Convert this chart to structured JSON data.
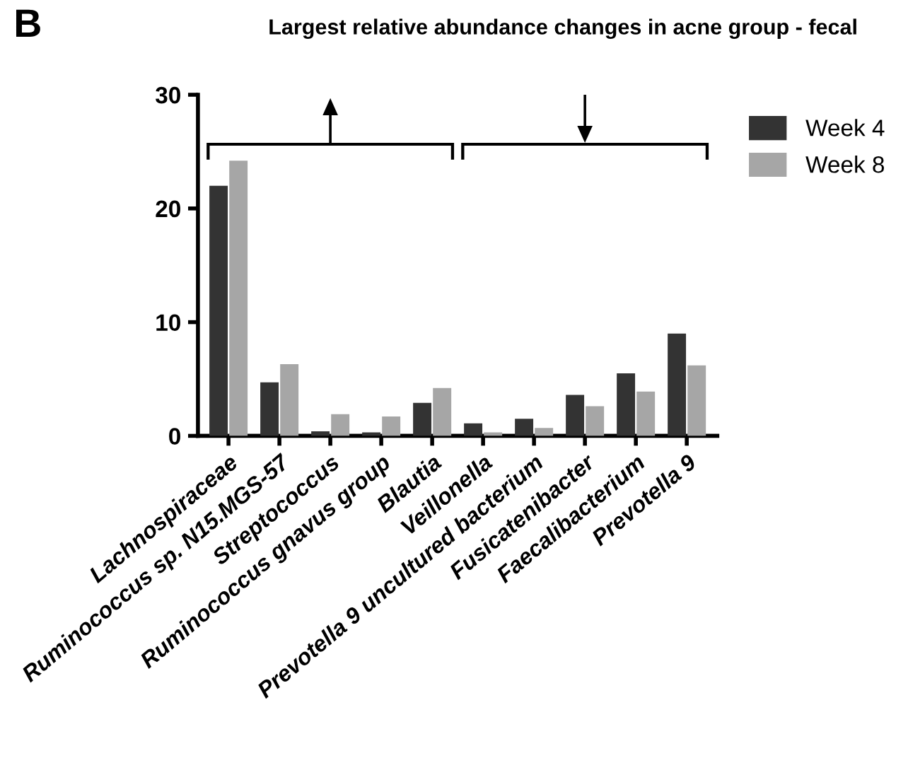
{
  "chart_data": {
    "type": "bar",
    "title": "Largest relative abundance changes in acne group - fecal",
    "categories": [
      "Lachnospiraceae",
      "Ruminococcus sp. N15.MGS-57",
      "Streptococcus",
      "Ruminococcus gnavus group",
      "Blautia",
      "Veillonella",
      "Prevotella 9 uncultured bacterium",
      "Fusicatenibacter",
      "Faecalibacterium",
      "Prevotella 9"
    ],
    "series": [
      {
        "name": "Week 4",
        "color": "#333333",
        "values": [
          22.0,
          4.7,
          0.4,
          0.3,
          2.9,
          1.1,
          1.5,
          3.6,
          5.5,
          9.0
        ]
      },
      {
        "name": "Week 8",
        "color": "#a6a6a6",
        "values": [
          24.2,
          6.3,
          1.9,
          1.7,
          4.2,
          0.3,
          0.7,
          2.6,
          3.9,
          6.2
        ]
      }
    ],
    "annotations": [
      "B"
    ],
    "ylim": [
      0,
      30
    ],
    "yticks": [
      0,
      10,
      20,
      30
    ],
    "grid": false,
    "legend": "top right"
  }
}
